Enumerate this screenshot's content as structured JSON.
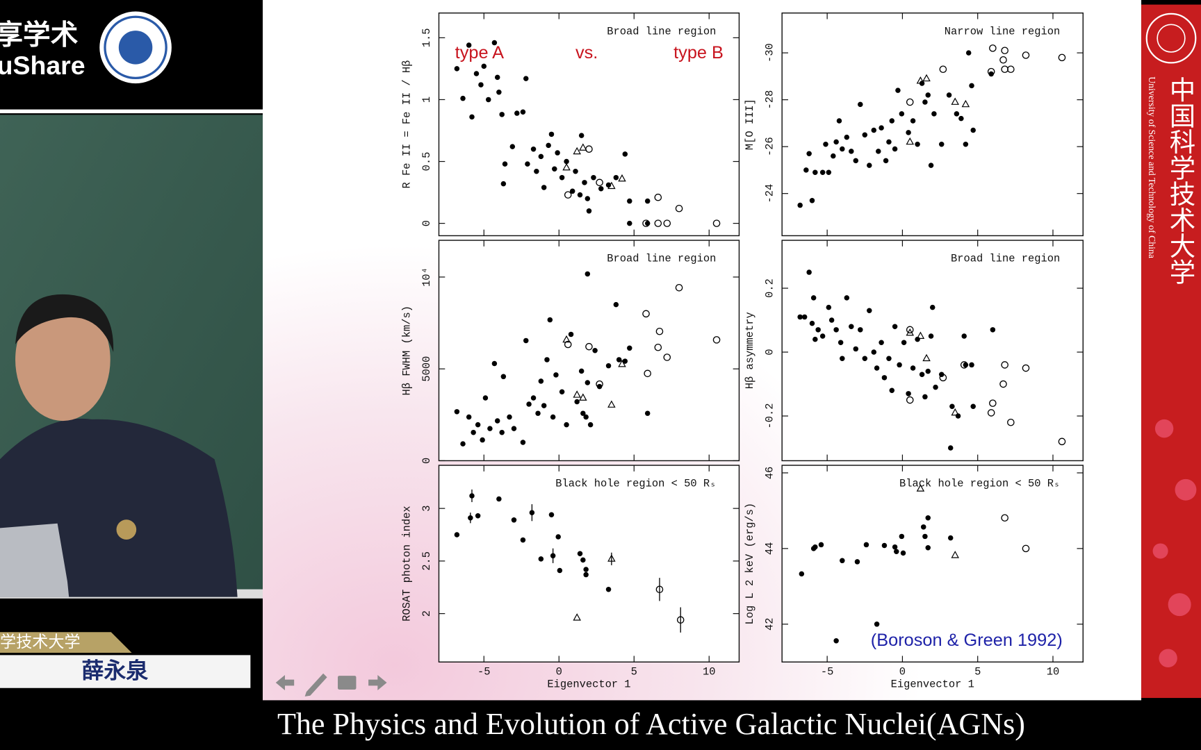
{
  "screen": {
    "logo_text": "享学术",
    "logo_subtext": "uShare",
    "lecturer_affiliation": "学技术大学",
    "lecturer_name": "薛永泉",
    "sidebar_cn": "中国科学技术大学",
    "sidebar_en": "University of Science and Technology of China",
    "caption": "The Physics and Evolution of Active Galactic Nuclei(AGNs)"
  },
  "chart_data": [
    {
      "type": "scatter",
      "title": "Broad line region",
      "ylabel": "R Fe II = Fe II / Hβ",
      "xlim": [
        -8,
        12
      ],
      "xticks": [
        -5,
        0,
        5,
        10
      ],
      "ylim": [
        -0.1,
        1.7
      ],
      "yticks": [
        0,
        0.5,
        1,
        1.5
      ],
      "annotations": [
        {
          "text": "type A",
          "color": "#c8141e"
        },
        {
          "text": "vs.",
          "color": "#c8141e"
        },
        {
          "text": "type B",
          "color": "#c8141e"
        }
      ],
      "series": [
        {
          "marker": "dot",
          "color": "#000000",
          "x": [
            -6.8,
            -6.4,
            -6.0,
            -5.8,
            -5.5,
            -5.2,
            -5.0,
            -4.7,
            -4.3,
            -4.1,
            -4.0,
            -3.8,
            -3.7,
            -3.6,
            -3.1,
            -2.8,
            -2.4,
            -2.2,
            -2.1,
            -1.7,
            -1.5,
            -1.2,
            -1.0,
            -0.7,
            -0.5,
            -0.3,
            -0.1,
            0.2,
            0.5,
            0.9,
            1.1,
            1.4,
            1.5,
            1.7,
            1.9,
            2.0,
            2.3,
            2.8,
            3.3,
            3.8,
            4.4,
            4.7,
            4.7,
            5.9,
            5.9
          ],
          "values": [
            1.25,
            1.01,
            1.44,
            0.86,
            1.21,
            1.12,
            1.27,
            1.0,
            1.46,
            1.18,
            1.06,
            0.88,
            0.32,
            0.48,
            0.62,
            0.89,
            0.9,
            1.17,
            0.48,
            0.6,
            0.42,
            0.54,
            0.29,
            0.63,
            0.72,
            0.44,
            0.57,
            0.37,
            0.5,
            0.26,
            0.42,
            0.23,
            0.71,
            0.33,
            0.2,
            0.1,
            0.37,
            0.28,
            0.31,
            0.37,
            0.56,
            0.18,
            0.0,
            0.18,
            0.0
          ]
        },
        {
          "marker": "circle",
          "color": "#000000",
          "x": [
            0.6,
            2.0,
            2.7,
            6.6,
            5.8,
            6.6,
            7.2,
            8.0,
            10.5
          ],
          "values": [
            0.23,
            0.6,
            0.33,
            0.21,
            0,
            0,
            0,
            0.12,
            0
          ]
        },
        {
          "marker": "triangle",
          "color": "#000000",
          "x": [
            0.5,
            1.2,
            1.6,
            3.5,
            4.2
          ],
          "values": [
            0.45,
            0.58,
            0.61,
            0.3,
            0.36
          ]
        }
      ]
    },
    {
      "type": "scatter",
      "title": "Narrow line region",
      "ylabel": "M[O III]",
      "xlim": [
        -8,
        12
      ],
      "xticks": [
        -5,
        0,
        5,
        10
      ],
      "ylim": [
        -22.2,
        -31.7
      ],
      "yticks": [
        -30,
        -28,
        -26,
        -24
      ],
      "series": [
        {
          "marker": "dot",
          "color": "#000000",
          "x": [
            -6.8,
            -6.4,
            -6.0,
            -6.2,
            -5.8,
            -5.3,
            -4.9,
            -5.1,
            -4.6,
            -4.4,
            -4.2,
            -4.0,
            -3.7,
            -3.4,
            -3.1,
            -2.8,
            -2.5,
            -2.2,
            -1.9,
            -1.6,
            -1.4,
            -1.1,
            -0.9,
            -0.7,
            -0.5,
            -0.3,
            -0.05,
            0.4,
            0.7,
            1.0,
            1.3,
            1.5,
            1.7,
            1.9,
            2.1,
            2.6,
            3.1,
            3.6,
            3.9,
            4.2,
            4.4,
            4.6,
            4.7,
            5.9
          ],
          "values": [
            -23.5,
            -25.0,
            -23.7,
            -25.7,
            -24.9,
            -24.9,
            -24.9,
            -26.1,
            -25.6,
            -26.2,
            -27.1,
            -25.9,
            -26.4,
            -25.8,
            -25.4,
            -27.8,
            -26.5,
            -25.2,
            -26.7,
            -25.8,
            -26.8,
            -25.4,
            -26.2,
            -27.1,
            -25.9,
            -28.4,
            -27.4,
            -26.6,
            -27.1,
            -26.1,
            -28.7,
            -27.9,
            -28.2,
            -25.2,
            -27.4,
            -26.1,
            -28.2,
            -27.4,
            -27.2,
            -26.1,
            -30.0,
            -28.6,
            -26.7,
            -29.1
          ]
        },
        {
          "marker": "circle",
          "color": "#000000",
          "x": [
            0.5,
            2.7,
            5.9,
            6.0,
            6.7,
            6.8,
            6.8,
            7.2,
            8.2,
            10.6
          ],
          "values": [
            -27.9,
            -29.3,
            -29.2,
            -30.2,
            -29.7,
            -30.1,
            -29.3,
            -29.3,
            -29.9,
            -29.8
          ]
        },
        {
          "marker": "triangle",
          "color": "#000000",
          "x": [
            0.5,
            1.2,
            1.6,
            3.5,
            4.2
          ],
          "values": [
            -26.2,
            -28.8,
            -28.9,
            -27.9,
            -27.8
          ]
        }
      ]
    },
    {
      "type": "scatter",
      "title": "Broad line region",
      "ylabel": "Hβ FWHM (km/s)",
      "xlim": [
        -8,
        12
      ],
      "xticks": [
        -5,
        0,
        5,
        10
      ],
      "ylim": [
        0,
        12000
      ],
      "yticks": [
        0,
        5000,
        {
          "value": 10000,
          "label": "10⁴"
        }
      ],
      "series": [
        {
          "marker": "dot",
          "color": "#000000",
          "x": [
            -6.8,
            -6.4,
            -6.0,
            -5.7,
            -5.4,
            -5.1,
            -4.9,
            -4.6,
            -4.3,
            -4.1,
            -3.8,
            -3.7,
            -3.3,
            -3.0,
            -2.4,
            -2.2,
            -2.0,
            -1.7,
            -1.4,
            -1.2,
            -1.0,
            -0.8,
            -0.6,
            -0.4,
            -0.2,
            0.2,
            0.5,
            0.8,
            1.2,
            1.5,
            1.6,
            1.8,
            1.9,
            1.9,
            2.1,
            2.4,
            2.7,
            3.3,
            3.8,
            4.0,
            4.4,
            4.7,
            5.9
          ],
          "values": [
            2670,
            920,
            2380,
            1540,
            1960,
            1130,
            3420,
            1750,
            5290,
            2170,
            1540,
            4580,
            2380,
            1750,
            1000,
            6540,
            3080,
            3420,
            2580,
            4330,
            3000,
            5500,
            7670,
            2380,
            4670,
            3750,
            1960,
            6880,
            3210,
            4880,
            2580,
            2380,
            4250,
            10170,
            1960,
            6000,
            4040,
            5170,
            8500,
            5500,
            5420,
            6130,
            2580
          ]
        },
        {
          "marker": "circle",
          "color": "#000000",
          "x": [
            0.6,
            2.0,
            2.7,
            5.8,
            5.9,
            6.7,
            6.6,
            7.2,
            8.0,
            10.5
          ],
          "values": [
            6330,
            6210,
            4170,
            8000,
            4750,
            7040,
            6170,
            5630,
            9420,
            6580
          ]
        },
        {
          "marker": "triangle",
          "color": "#000000",
          "x": [
            0.5,
            1.2,
            1.6,
            3.5,
            4.2
          ],
          "values": [
            6580,
            3580,
            3420,
            3040,
            5250
          ]
        }
      ]
    },
    {
      "type": "scatter",
      "title": "Broad line region",
      "ylabel": "Hβ asymmetry",
      "xlim": [
        -8,
        12
      ],
      "xticks": [
        -5,
        0,
        5,
        10
      ],
      "ylim": [
        -0.34,
        0.35
      ],
      "yticks": [
        -0.2,
        0,
        0.2
      ],
      "series": [
        {
          "marker": "dot",
          "color": "#000000",
          "x": [
            -6.8,
            -6.5,
            -6.2,
            -6.0,
            -5.9,
            -5.8,
            -5.6,
            -5.3,
            -4.9,
            -4.7,
            -4.4,
            -4.1,
            -4.0,
            -3.7,
            -3.4,
            -3.1,
            -2.8,
            -2.5,
            -2.2,
            -1.9,
            -1.7,
            -1.4,
            -1.2,
            -0.9,
            -0.7,
            -0.5,
            -0.2,
            0.1,
            0.4,
            0.7,
            1.0,
            1.3,
            1.5,
            1.7,
            2.0,
            1.9,
            2.2,
            2.6,
            3.3,
            3.7,
            3.2,
            4.1,
            4.2,
            4.6,
            4.7,
            6.0
          ],
          "values": [
            0.11,
            0.11,
            0.25,
            0.09,
            0.17,
            0.04,
            0.07,
            0.05,
            0.14,
            0.1,
            0.07,
            0.03,
            -0.02,
            0.17,
            0.08,
            0.01,
            0.07,
            -0.02,
            0.13,
            0.0,
            -0.05,
            0.03,
            -0.08,
            -0.02,
            -0.12,
            0.08,
            -0.04,
            0.03,
            -0.13,
            -0.05,
            0.04,
            -0.07,
            -0.14,
            -0.06,
            0.14,
            0.05,
            -0.11,
            -0.07,
            -0.17,
            -0.2,
            -0.3,
            0.05,
            -0.04,
            -0.04,
            -0.17,
            0.07
          ]
        },
        {
          "marker": "circle",
          "color": "#000000",
          "x": [
            0.5,
            0.5,
            2.7,
            4.1,
            6.0,
            5.9,
            6.8,
            6.7,
            7.2,
            8.2,
            10.6
          ],
          "values": [
            0.07,
            -0.15,
            -0.08,
            -0.04,
            -0.16,
            -0.19,
            -0.04,
            -0.1,
            -0.22,
            -0.05,
            -0.28
          ]
        },
        {
          "marker": "triangle",
          "color": "#000000",
          "x": [
            0.5,
            1.2,
            1.6,
            3.5
          ],
          "values": [
            0.06,
            0.05,
            -0.02,
            -0.19
          ]
        }
      ]
    },
    {
      "type": "scatter",
      "title": "Black hole region < 50 Rₛ",
      "ylabel": "ROSAT photon index",
      "xlabel": "Eigenvector 1",
      "xlim": [
        -8,
        12
      ],
      "xticks": [
        -5,
        0,
        5,
        10
      ],
      "ylim": [
        1.54,
        3.41
      ],
      "yticks": [
        2,
        2.5,
        3
      ],
      "series": [
        {
          "marker": "dot",
          "color": "#000000",
          "x": [
            -6.8,
            -5.8,
            -5.9,
            -5.4,
            -4.0,
            -3.0,
            -2.4,
            -1.8,
            -1.2,
            -0.5,
            -0.4,
            -0.05,
            0.05,
            1.4,
            1.6,
            1.8,
            1.8,
            3.3
          ],
          "values": [
            2.75,
            3.12,
            2.91,
            2.93,
            3.09,
            2.89,
            2.7,
            2.96,
            2.52,
            2.94,
            2.55,
            2.73,
            2.41,
            2.57,
            2.51,
            2.42,
            2.37,
            2.23
          ],
          "errors": [
            null,
            0.06,
            0.05,
            null,
            null,
            null,
            null,
            0.08,
            null,
            null,
            0.07,
            null,
            null,
            null,
            null,
            null,
            null,
            null
          ]
        },
        {
          "marker": "circle",
          "color": "#000000",
          "x": [
            6.7,
            8.1
          ],
          "values": [
            2.23,
            1.94
          ],
          "errors": [
            0.11,
            0.12
          ]
        },
        {
          "marker": "triangle",
          "color": "#000000",
          "x": [
            3.5,
            1.2
          ],
          "values": [
            2.52,
            1.96
          ],
          "errors": [
            0.06,
            null
          ]
        }
      ]
    },
    {
      "type": "scatter",
      "title": "Black hole region < 50 Rₛ",
      "ylabel": "Log L 2 keV (erg/s)",
      "xlabel": "Eigenvector 1",
      "xlim": [
        -8,
        12
      ],
      "xticks": [
        -5,
        0,
        5,
        10
      ],
      "ylim": [
        41.0,
        46.2
      ],
      "yticks": [
        42,
        44,
        46
      ],
      "annotations": [
        {
          "text": "(Boroson & Green 1992)",
          "color": "#1e22a8"
        }
      ],
      "series": [
        {
          "marker": "dot",
          "color": "#000000",
          "x": [
            -6.7,
            -5.9,
            -5.8,
            -5.4,
            -4.4,
            -4.0,
            -3.0,
            -2.4,
            -1.7,
            -1.2,
            -0.5,
            -0.4,
            -0.05,
            0.05,
            1.4,
            1.5,
            1.7,
            1.7,
            3.2
          ],
          "values": [
            43.33,
            44.0,
            44.04,
            44.1,
            41.56,
            43.68,
            43.65,
            44.1,
            42.0,
            44.08,
            44.04,
            43.92,
            44.32,
            43.88,
            44.57,
            44.32,
            44.81,
            44.02,
            44.28
          ]
        },
        {
          "marker": "circle",
          "color": "#000000",
          "x": [
            6.8,
            8.2
          ],
          "values": [
            44.81,
            44.0
          ]
        },
        {
          "marker": "triangle",
          "color": "#000000",
          "x": [
            1.2,
            3.5
          ],
          "values": [
            45.58,
            43.82
          ]
        }
      ]
    }
  ]
}
